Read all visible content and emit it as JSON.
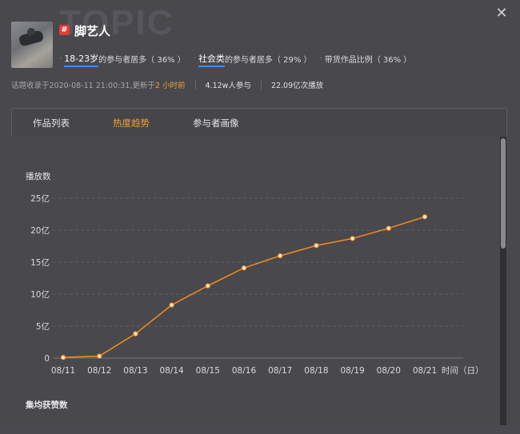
{
  "watermark": "TOPIC",
  "close_icon": "close-icon",
  "topic": {
    "title": "脚艺人",
    "tag_icon": "hashtag-icon",
    "tag_symbol": "#"
  },
  "stats": [
    {
      "highlight": "18-23岁",
      "rest": "的参与者居多（ 36% ）"
    },
    {
      "highlight": "社会类",
      "rest": "的参与者居多（ 29% ）"
    },
    {
      "highlight": "",
      "rest": "带货作品比例（ 36% ）"
    }
  ],
  "meta": {
    "collected": "话题收录于2020-08-11 21:00:31,更新于",
    "updated": "2 小时前",
    "participants": "4.12w人参与",
    "plays": "22.09亿次播放"
  },
  "tabs": [
    {
      "label": "作品列表",
      "active": false
    },
    {
      "label": "热度趋势",
      "active": true
    },
    {
      "label": "参与者画像",
      "active": false
    }
  ],
  "colors": {
    "accent": "#f1a22f",
    "line": "#f0881e",
    "underline": "#3a8fe0"
  },
  "chart_data": {
    "type": "line",
    "ylabel": "播放数",
    "xlabel": "时间（日）",
    "categories": [
      "08/11",
      "08/12",
      "08/13",
      "08/14",
      "08/15",
      "08/16",
      "08/17",
      "08/18",
      "08/19",
      "08/20",
      "08/21"
    ],
    "values": [
      0.1,
      0.3,
      3.8,
      8.3,
      11.3,
      14.1,
      16.0,
      17.6,
      18.7,
      20.3,
      22.1
    ],
    "yticks": [
      "0",
      "5亿",
      "10亿",
      "15亿",
      "20亿",
      "25亿"
    ],
    "ylim": [
      0,
      25
    ],
    "grid": true
  },
  "next_section_label": "集均获赞数"
}
